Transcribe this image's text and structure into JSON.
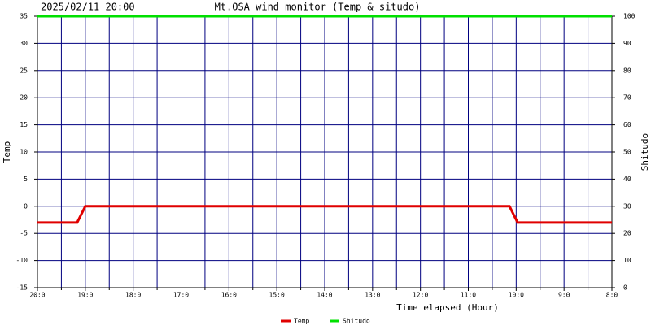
{
  "chart_data": {
    "type": "line",
    "title": "Mt.OSA wind monitor (Temp & situdo)",
    "subtitle": "2025/02/11 20:00",
    "xlabel": "Time elapsed (Hour)",
    "ylabel": "Temp",
    "y2label": "Shitudo",
    "xlim": [
      0,
      12
    ],
    "xticks": [
      {
        "value": 0,
        "label": "20:0"
      },
      {
        "value": 1,
        "label": "19:0"
      },
      {
        "value": 2,
        "label": "18:0"
      },
      {
        "value": 3,
        "label": "17:0"
      },
      {
        "value": 4,
        "label": "16:0"
      },
      {
        "value": 5,
        "label": "15:0"
      },
      {
        "value": 6,
        "label": "14:0"
      },
      {
        "value": 7,
        "label": "13:0"
      },
      {
        "value": 8,
        "label": "12:0"
      },
      {
        "value": 9,
        "label": "11:0"
      },
      {
        "value": 10,
        "label": "10:0"
      },
      {
        "value": 11,
        "label": "9:0"
      },
      {
        "value": 12,
        "label": "8:0"
      }
    ],
    "xminorticks": [
      0.5,
      1.5,
      2.5,
      3.5,
      4.5,
      5.5,
      6.5,
      7.5,
      8.5,
      9.5,
      10.5,
      11.5
    ],
    "ylim": [
      -15,
      35
    ],
    "yticks": [
      -15,
      -10,
      -5,
      0,
      5,
      10,
      15,
      20,
      25,
      30,
      35
    ],
    "y2lim": [
      0,
      100
    ],
    "y2ticks": [
      0,
      10,
      20,
      30,
      40,
      50,
      60,
      70,
      80,
      90,
      100
    ],
    "grid": true,
    "grid_color": "#000080",
    "legend": "bottom",
    "series": [
      {
        "name": "Temp",
        "color": "#e00000",
        "x": [
          0,
          0.83,
          1.0,
          9.86,
          10.03,
          12
        ],
        "values": [
          -3,
          -3,
          0,
          0,
          -3,
          -3
        ]
      },
      {
        "name": "Shitudo",
        "color": "#00e000",
        "axis": "y2",
        "x": [
          0,
          12
        ],
        "values": [
          100,
          100
        ]
      }
    ]
  }
}
